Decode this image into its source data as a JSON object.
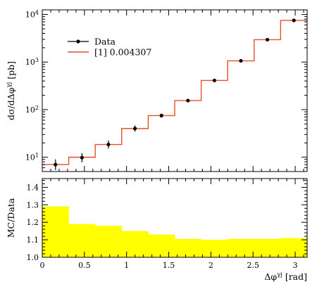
{
  "chart_data": {
    "type": "line",
    "main": {
      "yscale": "log",
      "ylim": [
        5,
        12500
      ],
      "ytick_labels": [
        {
          "value": 10,
          "base": "10",
          "exp": "1"
        },
        {
          "value": 100,
          "base": "10",
          "exp": "2"
        },
        {
          "value": 1000,
          "base": "10",
          "exp": "3"
        },
        {
          "value": 10000,
          "base": "10",
          "exp": "4"
        }
      ],
      "ylabel": "dσ/dΔφ^{γj} [pb]",
      "ylabel_parts": {
        "a": "dσ/dΔφ",
        "sup": "γj",
        "b": " [pb]"
      },
      "legend": {
        "placement": "top-left",
        "entries": [
          {
            "label": "Data",
            "color": "#000000",
            "style": "marker"
          },
          {
            "label": "[1] 0.004307",
            "color": "#e8502a",
            "style": "line"
          }
        ]
      }
    },
    "ratio": {
      "ylim": [
        1.0,
        1.45
      ],
      "yticks": [
        "1.0",
        "1.1",
        "1.2",
        "1.3",
        "1.4"
      ],
      "ylabel": "MC/Data",
      "band_color": "#ffff00"
    },
    "x": {
      "xlim": [
        0,
        3.1416
      ],
      "xticks": [
        "0",
        "0.5",
        "1",
        "1.5",
        "2",
        "2.5",
        "3"
      ],
      "xlabel_parts": {
        "a": "Δφ",
        "sup": "γj",
        "b": " [rad]"
      }
    },
    "bins": [
      {
        "lo": 0.0,
        "hi": 0.314,
        "data": 7.0,
        "err_lo": 5.4,
        "err_hi": 9.0,
        "mc": 7.0,
        "ratio": 1.29
      },
      {
        "lo": 0.314,
        "hi": 0.628,
        "data": 9.8,
        "err_lo": 7.8,
        "err_hi": 12.2,
        "mc": 10.0,
        "ratio": 1.19
      },
      {
        "lo": 0.628,
        "hi": 0.942,
        "data": 18.5,
        "err_lo": 15.2,
        "err_hi": 22.5,
        "mc": 18.5,
        "ratio": 1.18
      },
      {
        "lo": 0.942,
        "hi": 1.257,
        "data": 40.0,
        "err_lo": 34.5,
        "err_hi": 46.5,
        "mc": 40.0,
        "ratio": 1.15
      },
      {
        "lo": 1.257,
        "hi": 1.571,
        "data": 75.0,
        "err_lo": 68.0,
        "err_hi": 82.0,
        "mc": 75.0,
        "ratio": 1.13
      },
      {
        "lo": 1.571,
        "hi": 1.885,
        "data": 155.0,
        "err_lo": 147.0,
        "err_hi": 163.0,
        "mc": 155.0,
        "ratio": 1.105
      },
      {
        "lo": 1.885,
        "hi": 2.199,
        "data": 410.0,
        "err_lo": 396.0,
        "err_hi": 424.0,
        "mc": 410.0,
        "ratio": 1.1
      },
      {
        "lo": 2.199,
        "hi": 2.513,
        "data": 1060.0,
        "err_lo": 1035.0,
        "err_hi": 1085.0,
        "mc": 1060.0,
        "ratio": 1.105
      },
      {
        "lo": 2.513,
        "hi": 2.827,
        "data": 2950.0,
        "err_lo": 2900.0,
        "err_hi": 3000.0,
        "mc": 2950.0,
        "ratio": 1.105
      },
      {
        "lo": 2.827,
        "hi": 3.1416,
        "data": 7500.0,
        "err_lo": 7400.0,
        "err_hi": 7600.0,
        "mc": 7500.0,
        "ratio": 1.11
      }
    ]
  }
}
